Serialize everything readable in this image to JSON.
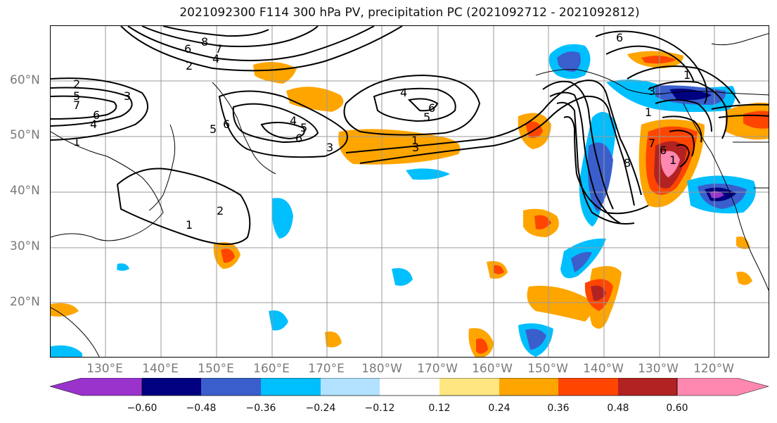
{
  "title": "2021092300 F114 300 hPa PV, precipitation PC (2021092712 - 2021092812)",
  "lat_labels": [
    "60°N",
    "50°N",
    "40°N",
    "30°N",
    "20°N"
  ],
  "lon_labels": [
    "130°E",
    "140°E",
    "150°E",
    "160°E",
    "170°E",
    "180°W",
    "170°W",
    "160°W",
    "150°W",
    "140°W",
    "130°W",
    "120°W"
  ],
  "contour_labels": [
    "2",
    "5",
    "7",
    "6",
    "4",
    "1",
    "3",
    "6",
    "8",
    "7",
    "4",
    "2",
    "3",
    "6",
    "5",
    "4",
    "5",
    "6",
    "3",
    "1",
    "4",
    "5",
    "6",
    "1",
    "2",
    "1",
    "3",
    "1",
    "6",
    "8",
    "7",
    "1",
    "6"
  ],
  "colorbar": {
    "tick_labels": [
      "−0.60",
      "−0.48",
      "−0.36",
      "−0.24",
      "−0.12",
      "0.12",
      "0.24",
      "0.36",
      "0.48",
      "0.60"
    ],
    "colors": [
      "#9933cc",
      "#000080",
      "#3a5fcd",
      "#00bfff",
      "#b2e2ff",
      "#ffffff",
      "#ffe680",
      "#ffa500",
      "#ff4500",
      "#b22222",
      "#ff88b0"
    ]
  }
}
